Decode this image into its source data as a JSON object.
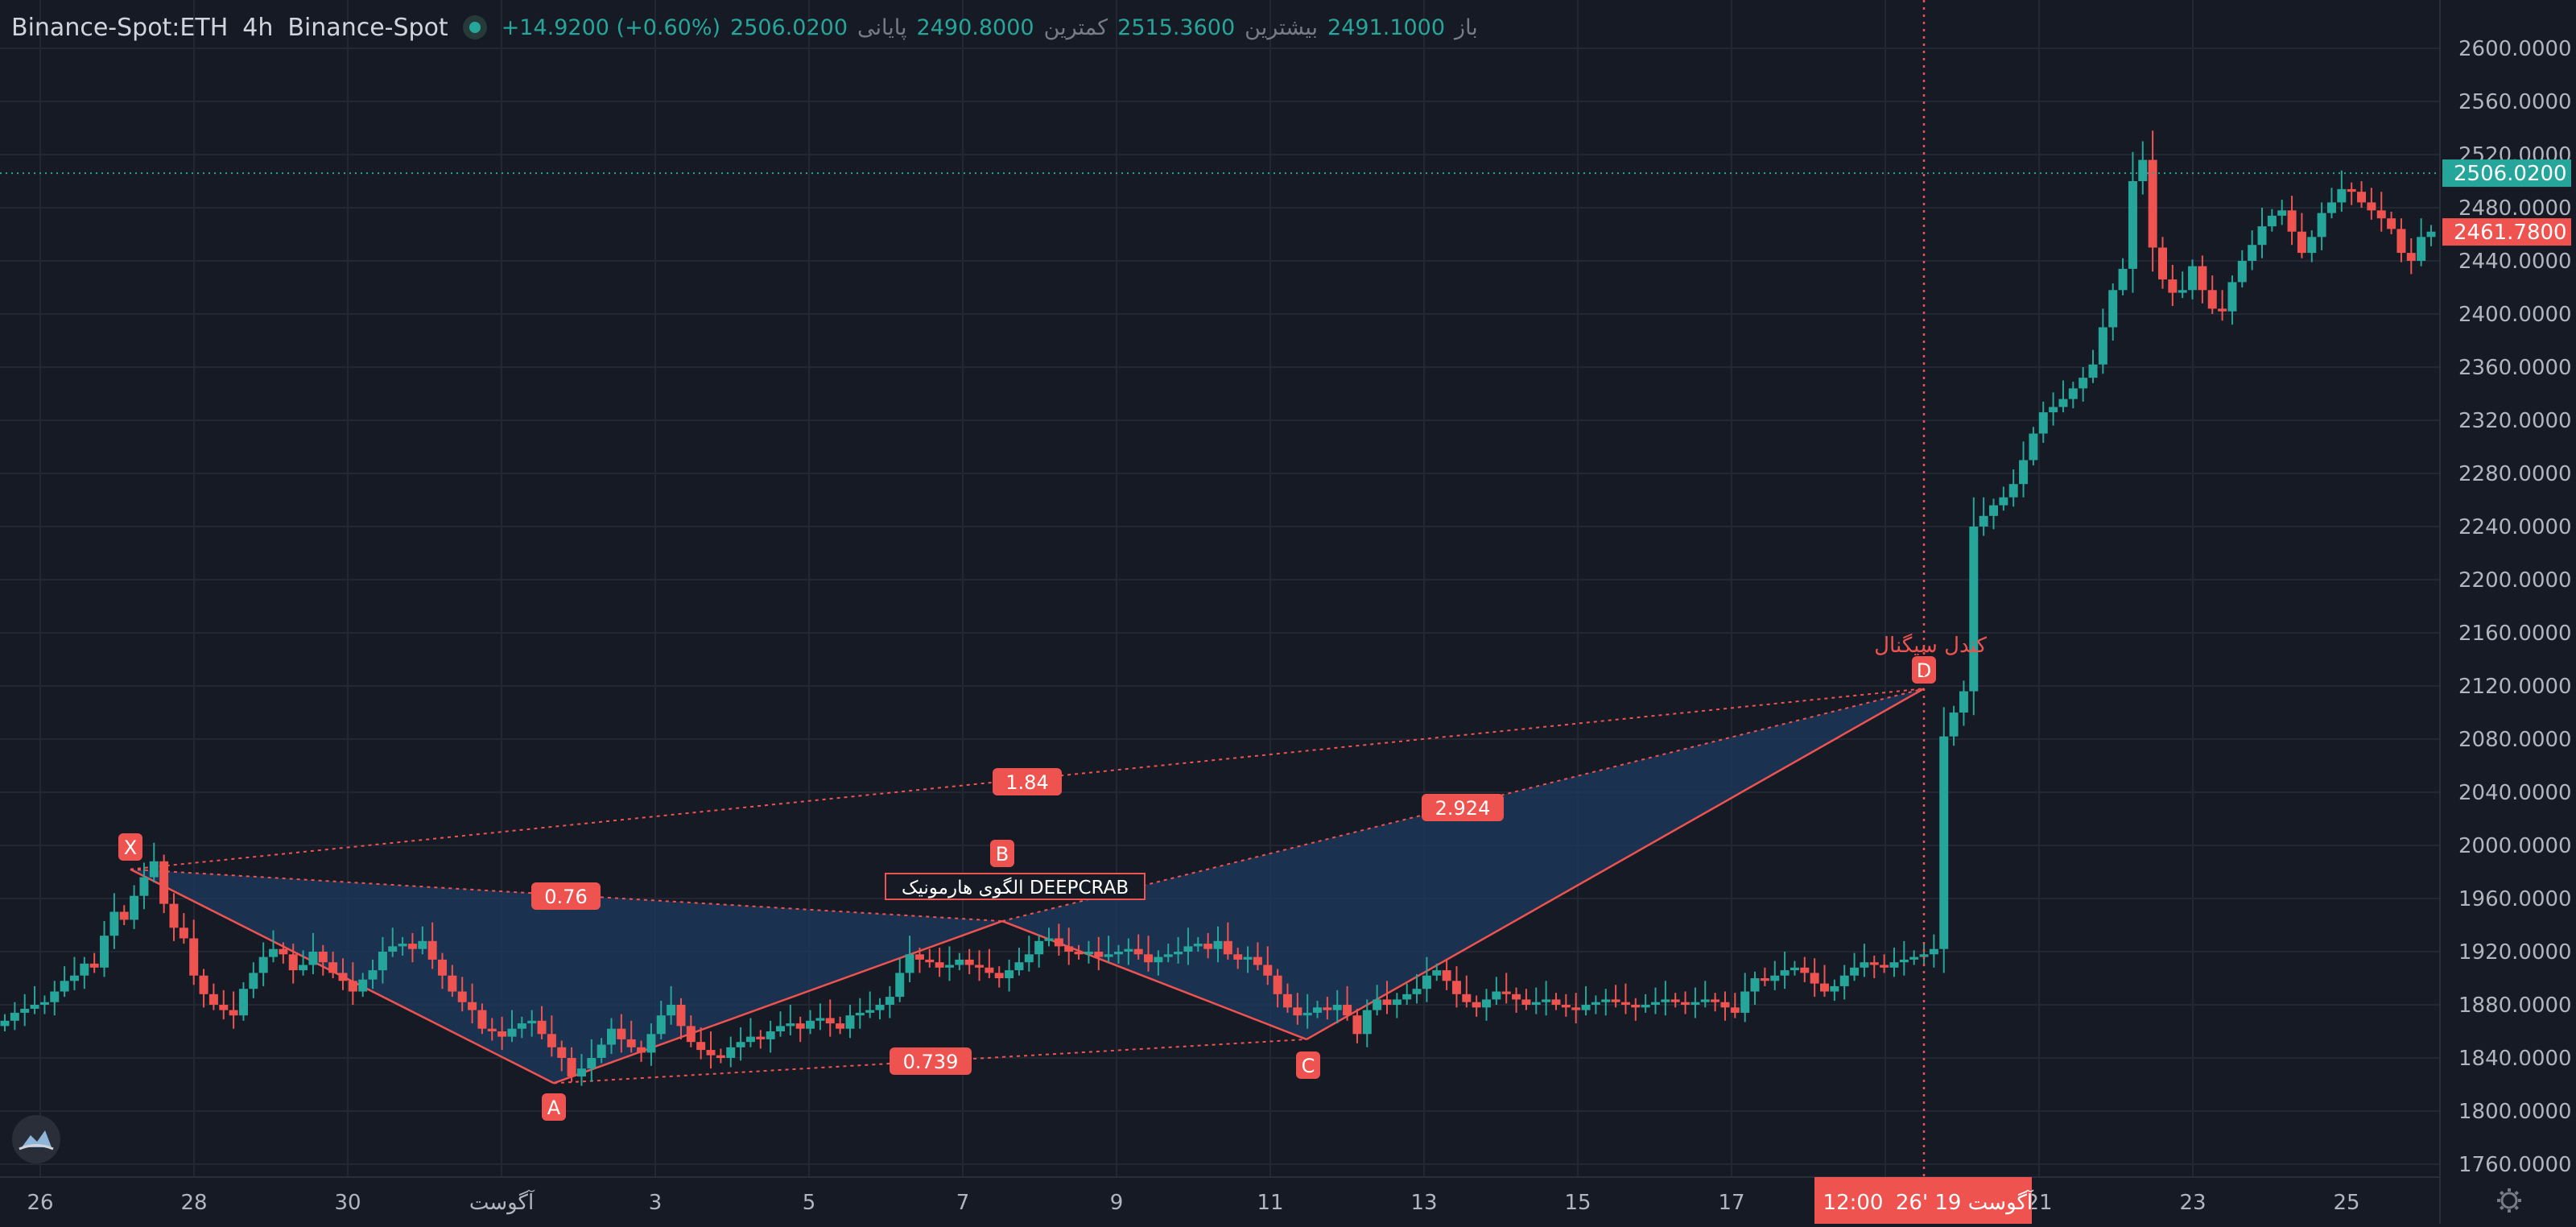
{
  "symbol": {
    "name": "Binance-Spot:ETH",
    "interval": "4h",
    "exchange": "Binance-Spot",
    "ohlc": {
      "open_label": "باز",
      "open": "2491.1000",
      "high_label": "بیشترین",
      "high": "2515.3600",
      "low_label": "کمترین",
      "low": "2490.8000",
      "close_label": "پایانی",
      "close": "2506.0200",
      "change": "+14.9200 (+0.60%)"
    }
  },
  "colors": {
    "background": "#161a25",
    "up": "#26a69a",
    "down": "#ef5350",
    "pattern_fill": "#1e3a5f",
    "pattern_line": "#ef5350"
  },
  "price_axis": {
    "labels": [
      "2600.0000",
      "2560.0000",
      "2520.0000",
      "2480.0000",
      "2440.0000",
      "2400.0000",
      "2360.0000",
      "2320.0000",
      "2280.0000",
      "2240.0000",
      "2200.0000",
      "2160.0000",
      "2120.0000",
      "2080.0000",
      "2040.0000",
      "2000.0000",
      "1960.0000",
      "1920.0000",
      "1880.0000",
      "1840.0000",
      "1800.0000",
      "1760.0000"
    ],
    "last_price": "2506.0200",
    "marker_price": "2461.7800"
  },
  "time_axis": {
    "labels": [
      "26",
      "28",
      "30",
      "آگوست",
      "3",
      "5",
      "7",
      "9",
      "11",
      "13",
      "15",
      "17",
      "19",
      "21",
      "23",
      "25"
    ],
    "crosshair_date": "26' آگوست 19",
    "crosshair_time": "12:00"
  },
  "pattern": {
    "name": "الگوی هارمونیک DEEPCRAB",
    "points": [
      "X",
      "A",
      "B",
      "C",
      "D"
    ],
    "ratios": {
      "xb": "0.76",
      "ac": "0.739",
      "xd": "1.84",
      "bd": "2.924"
    }
  },
  "signal": {
    "label": "کندل سیگنال"
  },
  "icons": {
    "logo": "cloud-logo-icon",
    "settings": "gear-icon"
  },
  "chart_data": {
    "type": "candlestick",
    "title": "Binance-Spot:ETH",
    "interval": "4h",
    "x_date_labels": [
      "26",
      "28",
      "30",
      "آگوست",
      "3",
      "5",
      "7",
      "9",
      "11",
      "13",
      "15",
      "17",
      "19",
      "21",
      "23",
      "25"
    ],
    "ylim": [
      1750,
      2620
    ],
    "y_ticks": [
      1760,
      1800,
      1840,
      1880,
      1920,
      1960,
      2000,
      2040,
      2080,
      2120,
      2160,
      2200,
      2240,
      2280,
      2320,
      2360,
      2400,
      2440,
      2480,
      2520,
      2560,
      2600
    ],
    "last_close": 2506.02,
    "closes": [
      1868,
      1874,
      1877,
      1880,
      1882,
      1890,
      1898,
      1902,
      1911,
      1908,
      1932,
      1950,
      1944,
      1962,
      1976,
      1988,
      1956,
      1938,
      1930,
      1902,
      1888,
      1880,
      1876,
      1872,
      1892,
      1904,
      1916,
      1922,
      1918,
      1906,
      1910,
      1920,
      1912,
      1904,
      1898,
      1890,
      1899,
      1906,
      1920,
      1924,
      1926,
      1922,
      1928,
      1914,
      1902,
      1890,
      1882,
      1876,
      1862,
      1860,
      1856,
      1862,
      1866,
      1868,
      1858,
      1848,
      1840,
      1826,
      1832,
      1840,
      1850,
      1862,
      1854,
      1848,
      1844,
      1858,
      1872,
      1880,
      1864,
      1852,
      1846,
      1842,
      1840,
      1848,
      1852,
      1856,
      1854,
      1860,
      1864,
      1866,
      1862,
      1868,
      1870,
      1866,
      1862,
      1872,
      1874,
      1876,
      1880,
      1886,
      1904,
      1918,
      1914,
      1912,
      1908,
      1910,
      1914,
      1910,
      1908,
      1904,
      1900,
      1906,
      1912,
      1918,
      1928,
      1930,
      1924,
      1920,
      1918,
      1920,
      1916,
      1918,
      1920,
      1922,
      1918,
      1912,
      1916,
      1918,
      1920,
      1924,
      1926,
      1922,
      1928,
      1918,
      1914,
      1916,
      1910,
      1902,
      1888,
      1878,
      1872,
      1874,
      1878,
      1876,
      1880,
      1872,
      1858,
      1876,
      1884,
      1880,
      1884,
      1888,
      1892,
      1902,
      1906,
      1898,
      1888,
      1882,
      1878,
      1884,
      1890,
      1888,
      1884,
      1880,
      1882,
      1884,
      1880,
      1878,
      1876,
      1880,
      1882,
      1884,
      1882,
      1880,
      1878,
      1880,
      1882,
      1884,
      1882,
      1880,
      1882,
      1884,
      1882,
      1878,
      1874,
      1890,
      1900,
      1898,
      1902,
      1906,
      1908,
      1904,
      1896,
      1890,
      1894,
      1902,
      1908,
      1912,
      1910,
      1908,
      1912,
      1914,
      1916,
      1918,
      1922,
      2082,
      2100,
      2116,
      2240,
      2248,
      2256,
      2262,
      2272,
      2290,
      2310,
      2326,
      2330,
      2336,
      2344,
      2352,
      2362,
      2390,
      2418,
      2434,
      2500,
      2516,
      2450,
      2426,
      2416,
      2418,
      2436,
      2418,
      2404,
      2402,
      2424,
      2440,
      2452,
      2466,
      2474,
      2478,
      2462,
      2446,
      2458,
      2476,
      2484,
      2494,
      2492,
      2484,
      2478,
      2472,
      2464,
      2446,
      2440,
      2458,
      2462
    ]
  }
}
